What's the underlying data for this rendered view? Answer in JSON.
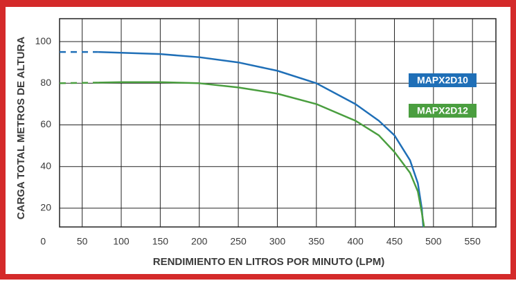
{
  "chart_data": {
    "type": "line",
    "x_label": "RENDIMIENTO EN LITROS POR MINUTO (LPM)",
    "y_label": "CARGA TOTAL METROS DE ALTURA",
    "xlim": [
      21,
      580
    ],
    "ylim": [
      11,
      111
    ],
    "xticks": [
      0,
      50,
      100,
      150,
      200,
      250,
      300,
      350,
      400,
      450,
      500,
      550
    ],
    "yticks": [
      20,
      40,
      60,
      80,
      100
    ],
    "grid": true,
    "dashed_first_segment": true,
    "series": [
      {
        "name": "MAPX2D10",
        "color": "#1f6fb7",
        "x": [
          21,
          70,
          150,
          200,
          250,
          300,
          350,
          400,
          430,
          450,
          470,
          480,
          485,
          487
        ],
        "values": [
          95,
          95,
          94,
          92.5,
          90,
          86,
          80,
          70,
          62,
          55,
          43,
          32,
          20,
          11
        ]
      },
      {
        "name": "MAPX2D12",
        "color": "#4a9e3f",
        "x": [
          21,
          70,
          100,
          150,
          200,
          250,
          300,
          350,
          400,
          430,
          450,
          470,
          480,
          485,
          488
        ],
        "values": [
          80,
          80.3,
          80.5,
          80.5,
          80,
          78,
          75,
          70,
          62,
          55,
          47,
          37,
          28,
          18,
          11
        ]
      }
    ]
  }
}
